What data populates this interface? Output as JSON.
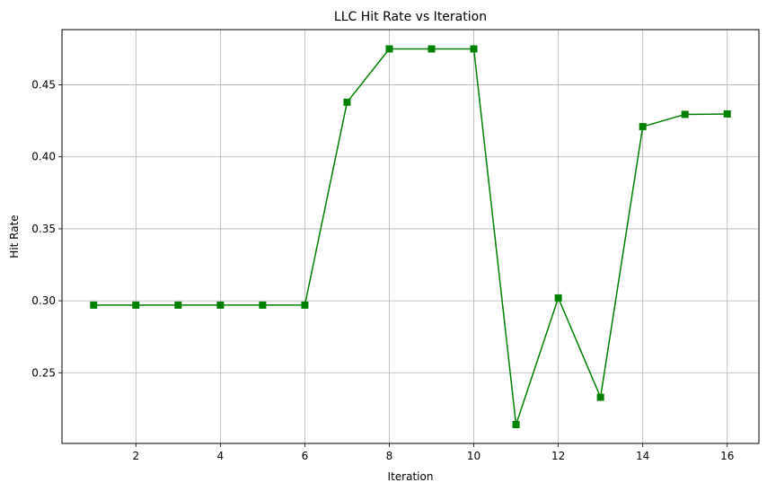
{
  "chart_data": {
    "type": "line",
    "title": "LLC Hit Rate vs Iteration",
    "xlabel": "Iteration",
    "ylabel": "Hit Rate",
    "xlim": [
      0.25,
      16.75
    ],
    "ylim": [
      0.2009,
      0.4884
    ],
    "x_ticks": [
      2,
      4,
      6,
      8,
      10,
      12,
      14,
      16
    ],
    "y_ticks": [
      0.25,
      0.3,
      0.35,
      0.4,
      0.45
    ],
    "y_tick_labels": [
      "0.25",
      "0.30",
      "0.35",
      "0.40",
      "0.45"
    ],
    "grid": true,
    "series": [
      {
        "color": "#008000",
        "marker": "square",
        "x": [
          1,
          2,
          3,
          4,
          5,
          6,
          7,
          8,
          9,
          10,
          11,
          12,
          13,
          14,
          15,
          16
        ],
        "values": [
          0.297,
          0.297,
          0.297,
          0.297,
          0.297,
          0.297,
          0.438,
          0.475,
          0.475,
          0.475,
          0.214,
          0.302,
          0.233,
          0.421,
          0.4295,
          0.4298
        ]
      }
    ]
  }
}
